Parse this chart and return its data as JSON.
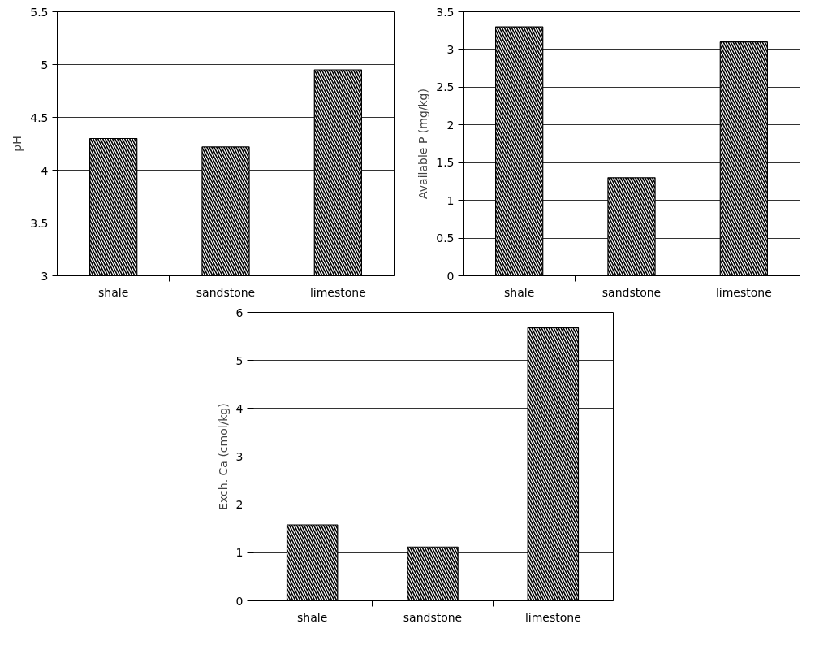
{
  "chart_data": [
    {
      "type": "bar",
      "ylabel": "pH",
      "categories": [
        "shale",
        "sandstone",
        "limestone"
      ],
      "values": [
        4.3,
        4.22,
        4.95
      ],
      "color": "#ffffff",
      "ylim": [
        3,
        5.5
      ],
      "yticks": [
        3,
        3.5,
        4,
        4.5,
        5,
        5.5
      ],
      "grid": "y"
    },
    {
      "type": "bar",
      "ylabel": "Available P (mg/kg)",
      "categories": [
        "shale",
        "sandstone",
        "limestone"
      ],
      "values": [
        3.3,
        1.3,
        3.1
      ],
      "color": "#ffffff",
      "ylim": [
        0,
        3.5
      ],
      "yticks": [
        0,
        0.5,
        1,
        1.5,
        2,
        2.5,
        3,
        3.5
      ],
      "grid": "y"
    },
    {
      "type": "bar",
      "ylabel": "Exch. Ca (cmol/kg)",
      "categories": [
        "shale",
        "sandstone",
        "limestone"
      ],
      "values": [
        1.58,
        1.12,
        5.68
      ],
      "color": "#ffffff",
      "ylim": [
        0,
        6
      ],
      "yticks": [
        0,
        1,
        2,
        3,
        4,
        5,
        6
      ],
      "grid": "y"
    }
  ]
}
